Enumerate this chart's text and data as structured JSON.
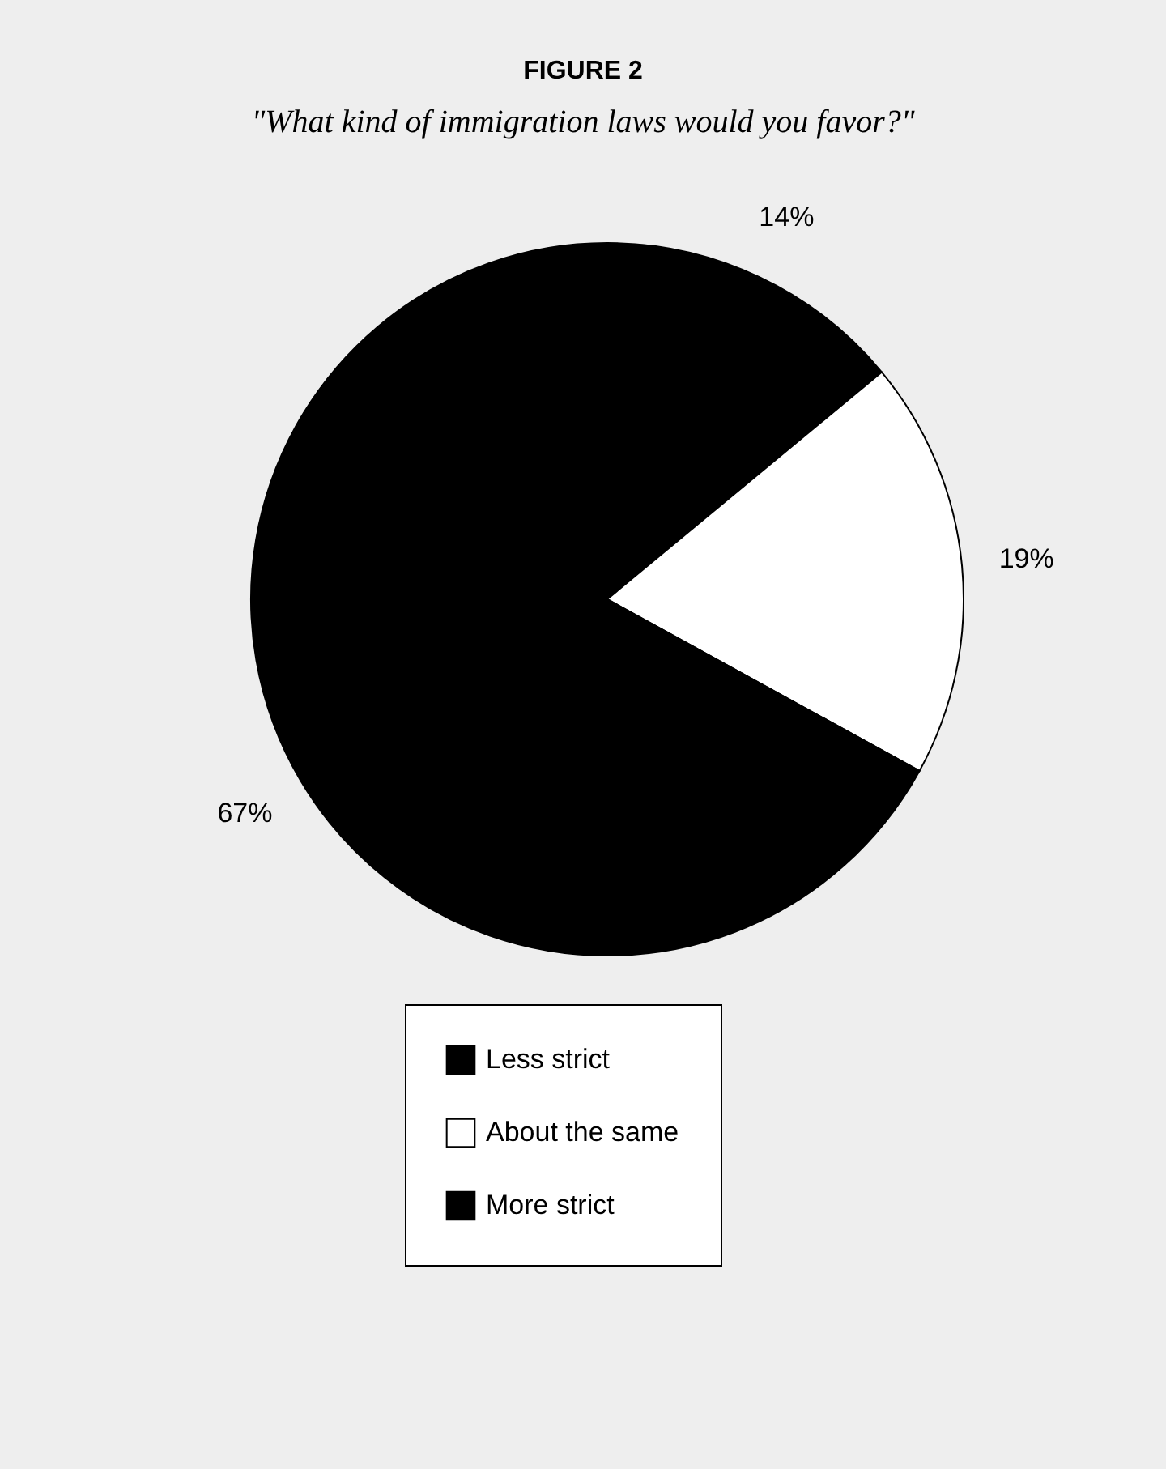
{
  "chart_data": {
    "type": "pie",
    "title": "FIGURE 2",
    "subtitle": "\"What kind of immigration laws would you favor?\"",
    "categories": [
      "Less strict",
      "About the same",
      "More strict"
    ],
    "values": [
      14,
      19,
      67
    ],
    "value_labels": [
      "14%",
      "19%",
      "67%"
    ],
    "colors": [
      "#000000",
      "#ffffff",
      "#000000"
    ],
    "legend": "bottom"
  }
}
